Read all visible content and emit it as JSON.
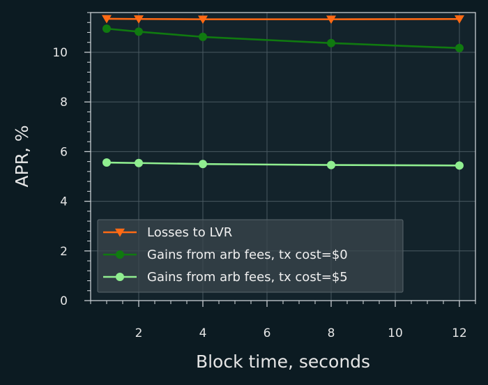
{
  "chart_data": {
    "type": "line",
    "xlabel": "Block time, seconds",
    "ylabel": "APR, %",
    "xlim": [
      0.5,
      12.5
    ],
    "ylim": [
      0,
      11.6
    ],
    "xticks": [
      2,
      4,
      6,
      8,
      10,
      12
    ],
    "yticks": [
      0,
      2,
      4,
      6,
      8,
      10
    ],
    "grid": true,
    "legend_position": "lower-left",
    "series": [
      {
        "name": "Losses to LVR",
        "color": "#ff6a14",
        "marker": "triangle-down",
        "x": [
          1,
          2,
          4,
          8,
          12
        ],
        "y": [
          11.35,
          11.34,
          11.33,
          11.33,
          11.34
        ]
      },
      {
        "name": "Gains from arb fees, tx cost=$0",
        "color": "#107a10",
        "marker": "circle",
        "x": [
          1,
          2,
          4,
          8,
          12
        ],
        "y": [
          10.95,
          10.83,
          10.62,
          10.37,
          10.17
        ]
      },
      {
        "name": "Gains from arb fees, tx cost=$5",
        "color": "#90ee90",
        "marker": "circle",
        "x": [
          1,
          2,
          4,
          8,
          12
        ],
        "y": [
          5.56,
          5.54,
          5.5,
          5.46,
          5.44
        ]
      }
    ]
  }
}
